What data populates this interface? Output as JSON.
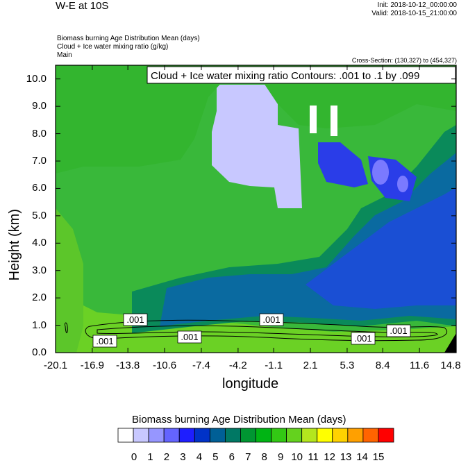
{
  "header": {
    "title": "W-E at 10S",
    "init": "Init: 2018-10-12_00:00:00",
    "valid": "Valid: 2018-10-15_21:00:00",
    "subtitle_1": "Biomass burning Age Distribution Mean   (days)",
    "subtitle_2": "Cloud + Ice water mixing ratio   (g/kg)",
    "subtitle_3": "Main",
    "cross_section": "Cross-Section: (130,327) to (454,327)"
  },
  "chart_data": {
    "type": "heatmap",
    "title": "W-E at 10S",
    "xlabel": "longitude",
    "ylabel": "Height (km)",
    "x_ticks": [
      "-20.1",
      "-16.9",
      "-13.8",
      "-10.6",
      "-7.4",
      "-4.2",
      "-1.1",
      "2.1",
      "5.3",
      "8.4",
      "11.6",
      "14.8"
    ],
    "y_ticks": [
      "0.0",
      "1.0",
      "2.0",
      "3.0",
      "4.0",
      "5.0",
      "6.0",
      "7.0",
      "8.0",
      "9.0",
      "10.0"
    ],
    "xlim": [
      -20.1,
      14.8
    ],
    "ylim": [
      0,
      10.5
    ],
    "contour_title": "Cloud + Ice water mixing ratio Contours: .001 to .1 by .099",
    "contour_labels": [
      ".001",
      ".001",
      ".001",
      ".001",
      ".001",
      ".001"
    ],
    "colorbar": {
      "title": "Biomass burning Age Distribution Mean  (days)",
      "labels": [
        "0",
        "1",
        "2",
        "3",
        "4",
        "5",
        "6",
        "7",
        "8",
        "9",
        "10",
        "11",
        "12",
        "13",
        "14",
        "15"
      ],
      "colors": [
        "#ffffff",
        "#c8c8ff",
        "#9696ff",
        "#6464ff",
        "#1e1eff",
        "#0032c8",
        "#005f96",
        "#007864",
        "#009632",
        "#00b414",
        "#32c814",
        "#64d21e",
        "#b4e61e",
        "#ffff00",
        "#ffd200",
        "#ffa000",
        "#ff6400",
        "#ff0000"
      ]
    }
  }
}
